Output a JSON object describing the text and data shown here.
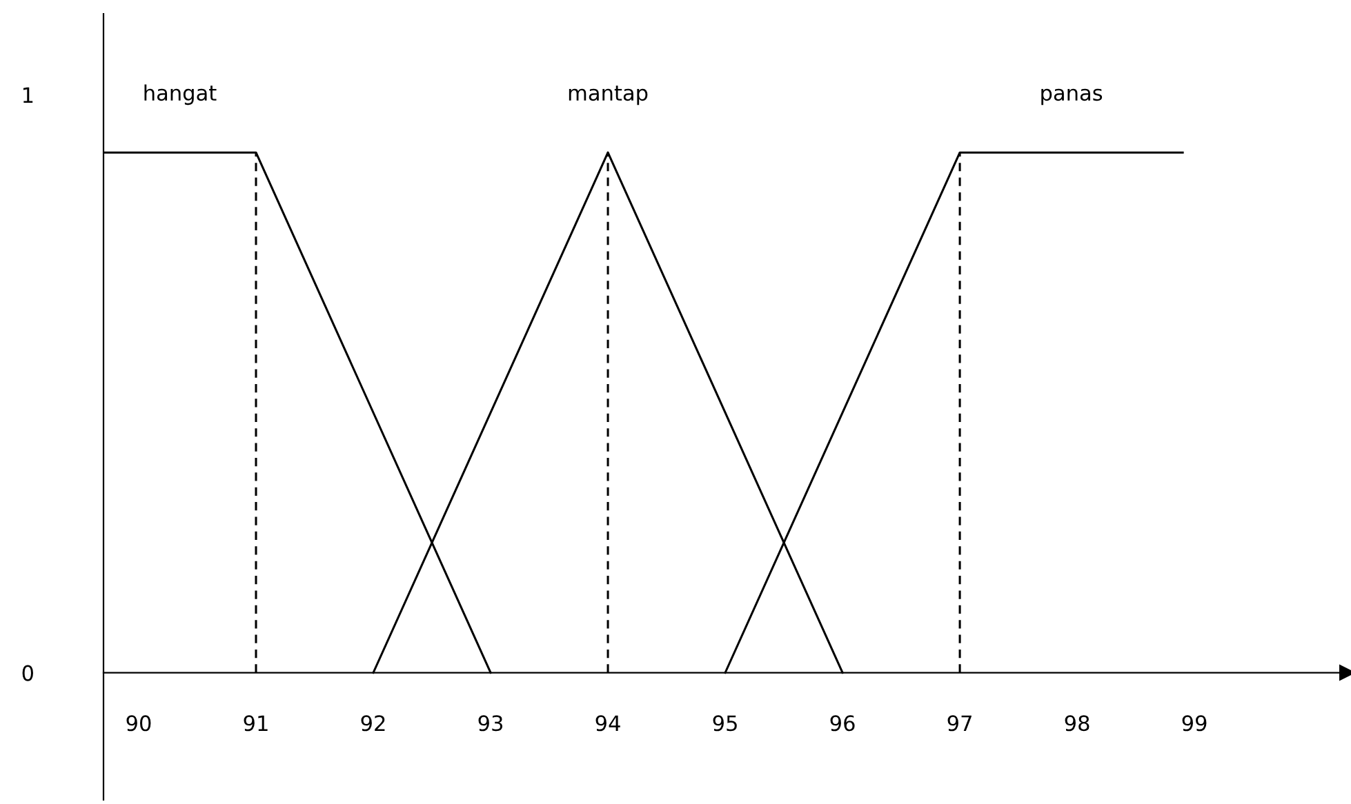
{
  "chart_data": {
    "type": "line",
    "xlim": [
      89.7,
      100.3
    ],
    "ylim": [
      -0.22,
      1.14
    ],
    "xticks": [
      90,
      91,
      92,
      93,
      94,
      95,
      96,
      97,
      98,
      99
    ],
    "yticks": [
      0,
      1
    ],
    "grid": false,
    "legend": false,
    "marker": "none",
    "series": [
      {
        "name": "hangat",
        "color": "#000000",
        "x": [
          89.7,
          91,
          93
        ],
        "values": [
          0.9,
          0.9,
          0
        ]
      },
      {
        "name": "mantap",
        "color": "#000000",
        "x": [
          92,
          94,
          96
        ],
        "values": [
          0,
          0.9,
          0
        ]
      },
      {
        "name": "panas",
        "color": "#000000",
        "x": [
          95,
          97,
          98.9
        ],
        "values": [
          0,
          0.9,
          0.9
        ]
      },
      {
        "color": "#000000",
        "line_style": "dashed",
        "x": [
          91,
          91
        ],
        "values": [
          0,
          0.9
        ]
      },
      {
        "color": "#000000",
        "line_style": "dashed",
        "x": [
          94,
          94
        ],
        "values": [
          0,
          0.9
        ]
      },
      {
        "color": "#000000",
        "line_style": "dashed",
        "x": [
          97,
          97
        ],
        "values": [
          0,
          0.9
        ]
      }
    ]
  }
}
